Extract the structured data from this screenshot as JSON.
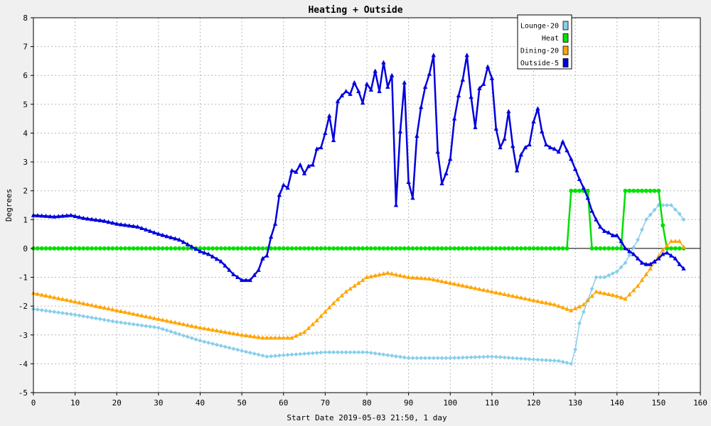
{
  "chart_data": {
    "type": "line",
    "title": "Heating + Outside",
    "xlabel": "Start Date 2019-05-03 21:50, 1 day",
    "ylabel": "Degrees",
    "xlim": [
      0,
      160
    ],
    "ylim": [
      -5,
      8
    ],
    "x_ticks": [
      0,
      10,
      20,
      30,
      40,
      50,
      60,
      70,
      80,
      90,
      100,
      110,
      120,
      130,
      140,
      150,
      160
    ],
    "y_ticks": [
      -5,
      -4,
      -3,
      -2,
      -1,
      0,
      1,
      2,
      3,
      4,
      5,
      6,
      7,
      8
    ],
    "grid": true,
    "legend_position": "top-right",
    "series": [
      {
        "name": "Lounge-20",
        "color": "#87ceeb",
        "marker": "diamond",
        "points": [
          [
            0,
            -2.1
          ],
          [
            10,
            -2.3
          ],
          [
            20,
            -2.55
          ],
          [
            30,
            -2.75
          ],
          [
            40,
            -3.2
          ],
          [
            50,
            -3.55
          ],
          [
            56,
            -3.75
          ],
          [
            60,
            -3.7
          ],
          [
            70,
            -3.6
          ],
          [
            80,
            -3.6
          ],
          [
            90,
            -3.8
          ],
          [
            100,
            -3.8
          ],
          [
            110,
            -3.75
          ],
          [
            120,
            -3.85
          ],
          [
            126,
            -3.9
          ],
          [
            129,
            -4.0
          ],
          [
            130,
            -3.5
          ],
          [
            131,
            -2.6
          ],
          [
            133,
            -1.8
          ],
          [
            135,
            -1.0
          ],
          [
            137,
            -1.0
          ],
          [
            140,
            -0.8
          ],
          [
            142,
            -0.5
          ],
          [
            145,
            0.3
          ],
          [
            147,
            1.0
          ],
          [
            150,
            1.5
          ],
          [
            153,
            1.5
          ],
          [
            155,
            1.2
          ],
          [
            156,
            1.0
          ]
        ]
      },
      {
        "name": "Heat",
        "color": "#00e000",
        "marker": "circle",
        "points": [
          [
            0,
            0
          ],
          [
            128,
            0
          ],
          [
            129,
            2.0
          ],
          [
            133,
            2.0
          ],
          [
            134,
            0
          ],
          [
            141,
            0
          ],
          [
            142,
            2.0
          ],
          [
            150,
            2.0
          ],
          [
            151,
            0.8
          ],
          [
            152,
            0
          ],
          [
            156,
            0
          ]
        ]
      },
      {
        "name": "Dining-20",
        "color": "#ffa500",
        "marker": "triangle",
        "points": [
          [
            0,
            -1.55
          ],
          [
            10,
            -1.85
          ],
          [
            20,
            -2.15
          ],
          [
            30,
            -2.45
          ],
          [
            40,
            -2.75
          ],
          [
            50,
            -3.0
          ],
          [
            55,
            -3.1
          ],
          [
            62,
            -3.1
          ],
          [
            65,
            -2.9
          ],
          [
            68,
            -2.5
          ],
          [
            72,
            -1.9
          ],
          [
            75,
            -1.5
          ],
          [
            80,
            -1.0
          ],
          [
            85,
            -0.85
          ],
          [
            90,
            -1.0
          ],
          [
            95,
            -1.05
          ],
          [
            100,
            -1.2
          ],
          [
            110,
            -1.5
          ],
          [
            120,
            -1.8
          ],
          [
            125,
            -1.95
          ],
          [
            129,
            -2.15
          ],
          [
            132,
            -1.95
          ],
          [
            135,
            -1.5
          ],
          [
            140,
            -1.65
          ],
          [
            142,
            -1.75
          ],
          [
            145,
            -1.3
          ],
          [
            148,
            -0.7
          ],
          [
            151,
            -0.05
          ],
          [
            153,
            0.25
          ],
          [
            155,
            0.25
          ],
          [
            156,
            0.05
          ]
        ]
      },
      {
        "name": "Outside-5",
        "color": "#0000dd",
        "marker": "triangle",
        "points": [
          [
            0,
            1.15
          ],
          [
            5,
            1.1
          ],
          [
            9,
            1.15
          ],
          [
            12,
            1.05
          ],
          [
            17,
            0.95
          ],
          [
            20,
            0.85
          ],
          [
            25,
            0.75
          ],
          [
            30,
            0.5
          ],
          [
            35,
            0.3
          ],
          [
            40,
            -0.1
          ],
          [
            42,
            -0.2
          ],
          [
            45,
            -0.45
          ],
          [
            48,
            -0.9
          ],
          [
            50,
            -1.1
          ],
          [
            52,
            -1.1
          ],
          [
            54,
            -0.75
          ],
          [
            55,
            -0.35
          ],
          [
            56,
            -0.25
          ],
          [
            57,
            0.4
          ],
          [
            58,
            0.85
          ],
          [
            59,
            1.85
          ],
          [
            60,
            2.2
          ],
          [
            61,
            2.1
          ],
          [
            62,
            2.7
          ],
          [
            63,
            2.65
          ],
          [
            64,
            2.9
          ],
          [
            65,
            2.6
          ],
          [
            66,
            2.85
          ],
          [
            67,
            2.9
          ],
          [
            68,
            3.45
          ],
          [
            69,
            3.5
          ],
          [
            70,
            4.0
          ],
          [
            71,
            4.6
          ],
          [
            72,
            3.75
          ],
          [
            73,
            5.1
          ],
          [
            74,
            5.3
          ],
          [
            75,
            5.45
          ],
          [
            76,
            5.35
          ],
          [
            77,
            5.75
          ],
          [
            78,
            5.45
          ],
          [
            79,
            5.05
          ],
          [
            80,
            5.7
          ],
          [
            81,
            5.5
          ],
          [
            82,
            6.15
          ],
          [
            83,
            5.45
          ],
          [
            84,
            6.45
          ],
          [
            85,
            5.6
          ],
          [
            86,
            6.0
          ],
          [
            87,
            1.5
          ],
          [
            88,
            4.05
          ],
          [
            89,
            5.75
          ],
          [
            90,
            2.3
          ],
          [
            91,
            1.75
          ],
          [
            92,
            3.9
          ],
          [
            93,
            4.9
          ],
          [
            94,
            5.6
          ],
          [
            95,
            6.05
          ],
          [
            96,
            6.7
          ],
          [
            97,
            3.35
          ],
          [
            98,
            2.25
          ],
          [
            99,
            2.6
          ],
          [
            100,
            3.1
          ],
          [
            101,
            4.5
          ],
          [
            102,
            5.3
          ],
          [
            103,
            5.85
          ],
          [
            104,
            6.7
          ],
          [
            105,
            5.25
          ],
          [
            106,
            4.2
          ],
          [
            107,
            5.55
          ],
          [
            108,
            5.7
          ],
          [
            109,
            6.3
          ],
          [
            110,
            5.9
          ],
          [
            111,
            4.15
          ],
          [
            112,
            3.5
          ],
          [
            113,
            3.8
          ],
          [
            114,
            4.75
          ],
          [
            115,
            3.55
          ],
          [
            116,
            2.7
          ],
          [
            117,
            3.25
          ],
          [
            118,
            3.5
          ],
          [
            119,
            3.6
          ],
          [
            120,
            4.4
          ],
          [
            121,
            4.85
          ],
          [
            122,
            4.05
          ],
          [
            123,
            3.6
          ],
          [
            124,
            3.5
          ],
          [
            125,
            3.45
          ],
          [
            126,
            3.35
          ],
          [
            127,
            3.7
          ],
          [
            128,
            3.4
          ],
          [
            129,
            3.1
          ],
          [
            130,
            2.75
          ],
          [
            131,
            2.4
          ],
          [
            132,
            2.1
          ],
          [
            133,
            1.75
          ],
          [
            134,
            1.3
          ],
          [
            135,
            1.0
          ],
          [
            136,
            0.75
          ],
          [
            137,
            0.6
          ],
          [
            138,
            0.55
          ],
          [
            139,
            0.45
          ],
          [
            140,
            0.45
          ],
          [
            141,
            0.25
          ],
          [
            142,
            0.0
          ],
          [
            143,
            -0.1
          ],
          [
            144,
            -0.2
          ],
          [
            145,
            -0.35
          ],
          [
            146,
            -0.5
          ],
          [
            147,
            -0.55
          ],
          [
            148,
            -0.55
          ],
          [
            149,
            -0.45
          ],
          [
            150,
            -0.35
          ],
          [
            151,
            -0.2
          ],
          [
            152,
            -0.15
          ],
          [
            153,
            -0.25
          ],
          [
            154,
            -0.35
          ],
          [
            155,
            -0.55
          ],
          [
            156,
            -0.7
          ]
        ]
      }
    ]
  }
}
